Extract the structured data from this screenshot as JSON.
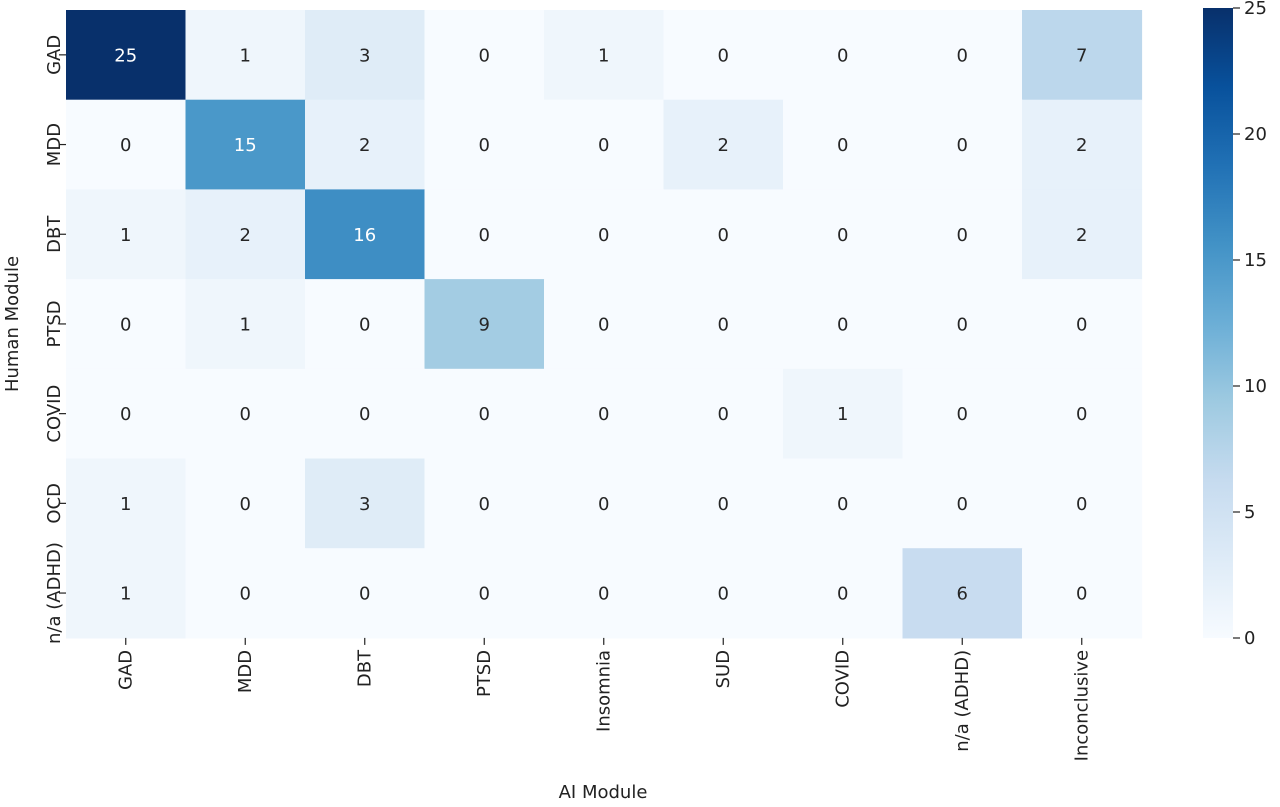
{
  "chart_data": {
    "type": "heatmap",
    "xlabel": "AI Module",
    "ylabel": "Human Module",
    "x_categories": [
      "GAD",
      "MDD",
      "DBT",
      "PTSD",
      "Insomnia",
      "SUD",
      "COVID",
      "n/a (ADHD)",
      "Inconclusive"
    ],
    "y_categories": [
      "GAD",
      "MDD",
      "DBT",
      "PTSD",
      "COVID",
      "OCD",
      "n/a (ADHD)"
    ],
    "values": [
      [
        25,
        1,
        3,
        0,
        1,
        0,
        0,
        0,
        7
      ],
      [
        0,
        15,
        2,
        0,
        0,
        2,
        0,
        0,
        2
      ],
      [
        1,
        2,
        16,
        0,
        0,
        0,
        0,
        0,
        2
      ],
      [
        0,
        1,
        0,
        9,
        0,
        0,
        0,
        0,
        0
      ],
      [
        0,
        0,
        0,
        0,
        0,
        0,
        1,
        0,
        0
      ],
      [
        1,
        0,
        3,
        0,
        0,
        0,
        0,
        0,
        0
      ],
      [
        1,
        0,
        0,
        0,
        0,
        0,
        0,
        6,
        0
      ]
    ],
    "value_range": [
      0,
      25
    ],
    "colorbar_ticks": [
      0,
      5,
      10,
      15,
      20,
      25
    ],
    "colormap": "Blues",
    "annotations": true
  }
}
